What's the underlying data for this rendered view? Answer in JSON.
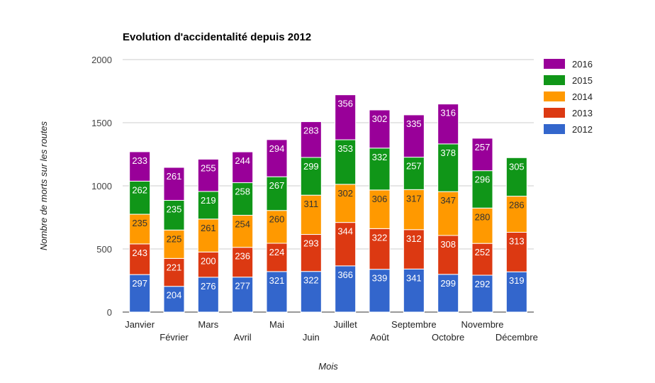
{
  "chart_data": {
    "type": "bar",
    "stacked": true,
    "title": "Evolution d'accidentalité depuis 2012",
    "xlabel": "Mois",
    "ylabel": "Nombre de morts sur les routes",
    "ylim": [
      0,
      2000
    ],
    "yticks": [
      0,
      500,
      1000,
      1500,
      2000
    ],
    "grid": true,
    "legend_position": "right",
    "categories": [
      "Janvier",
      "Février",
      "Mars",
      "Avril",
      "Mai",
      "Juin",
      "Juillet",
      "Août",
      "Septembre",
      "Octobre",
      "Novembre",
      "Décembre"
    ],
    "series": [
      {
        "name": "2012",
        "color": "#3366cc",
        "label_color": "#ffffff",
        "values": [
          297,
          204,
          276,
          277,
          321,
          322,
          366,
          339,
          341,
          299,
          292,
          319
        ]
      },
      {
        "name": "2013",
        "color": "#dc3912",
        "label_color": "#ffffff",
        "values": [
          243,
          221,
          200,
          236,
          224,
          293,
          344,
          322,
          312,
          308,
          252,
          313
        ]
      },
      {
        "name": "2014",
        "color": "#ff9900",
        "label_color": "#333333",
        "values": [
          235,
          225,
          261,
          254,
          260,
          311,
          302,
          306,
          317,
          347,
          280,
          286
        ]
      },
      {
        "name": "2015",
        "color": "#109618",
        "label_color": "#ffffff",
        "values": [
          262,
          235,
          219,
          258,
          267,
          299,
          353,
          332,
          257,
          378,
          296,
          305
        ]
      },
      {
        "name": "2016",
        "color": "#990099",
        "label_color": "#ffffff",
        "values": [
          233,
          261,
          255,
          244,
          294,
          283,
          356,
          302,
          335,
          316,
          257,
          null
        ]
      }
    ]
  }
}
